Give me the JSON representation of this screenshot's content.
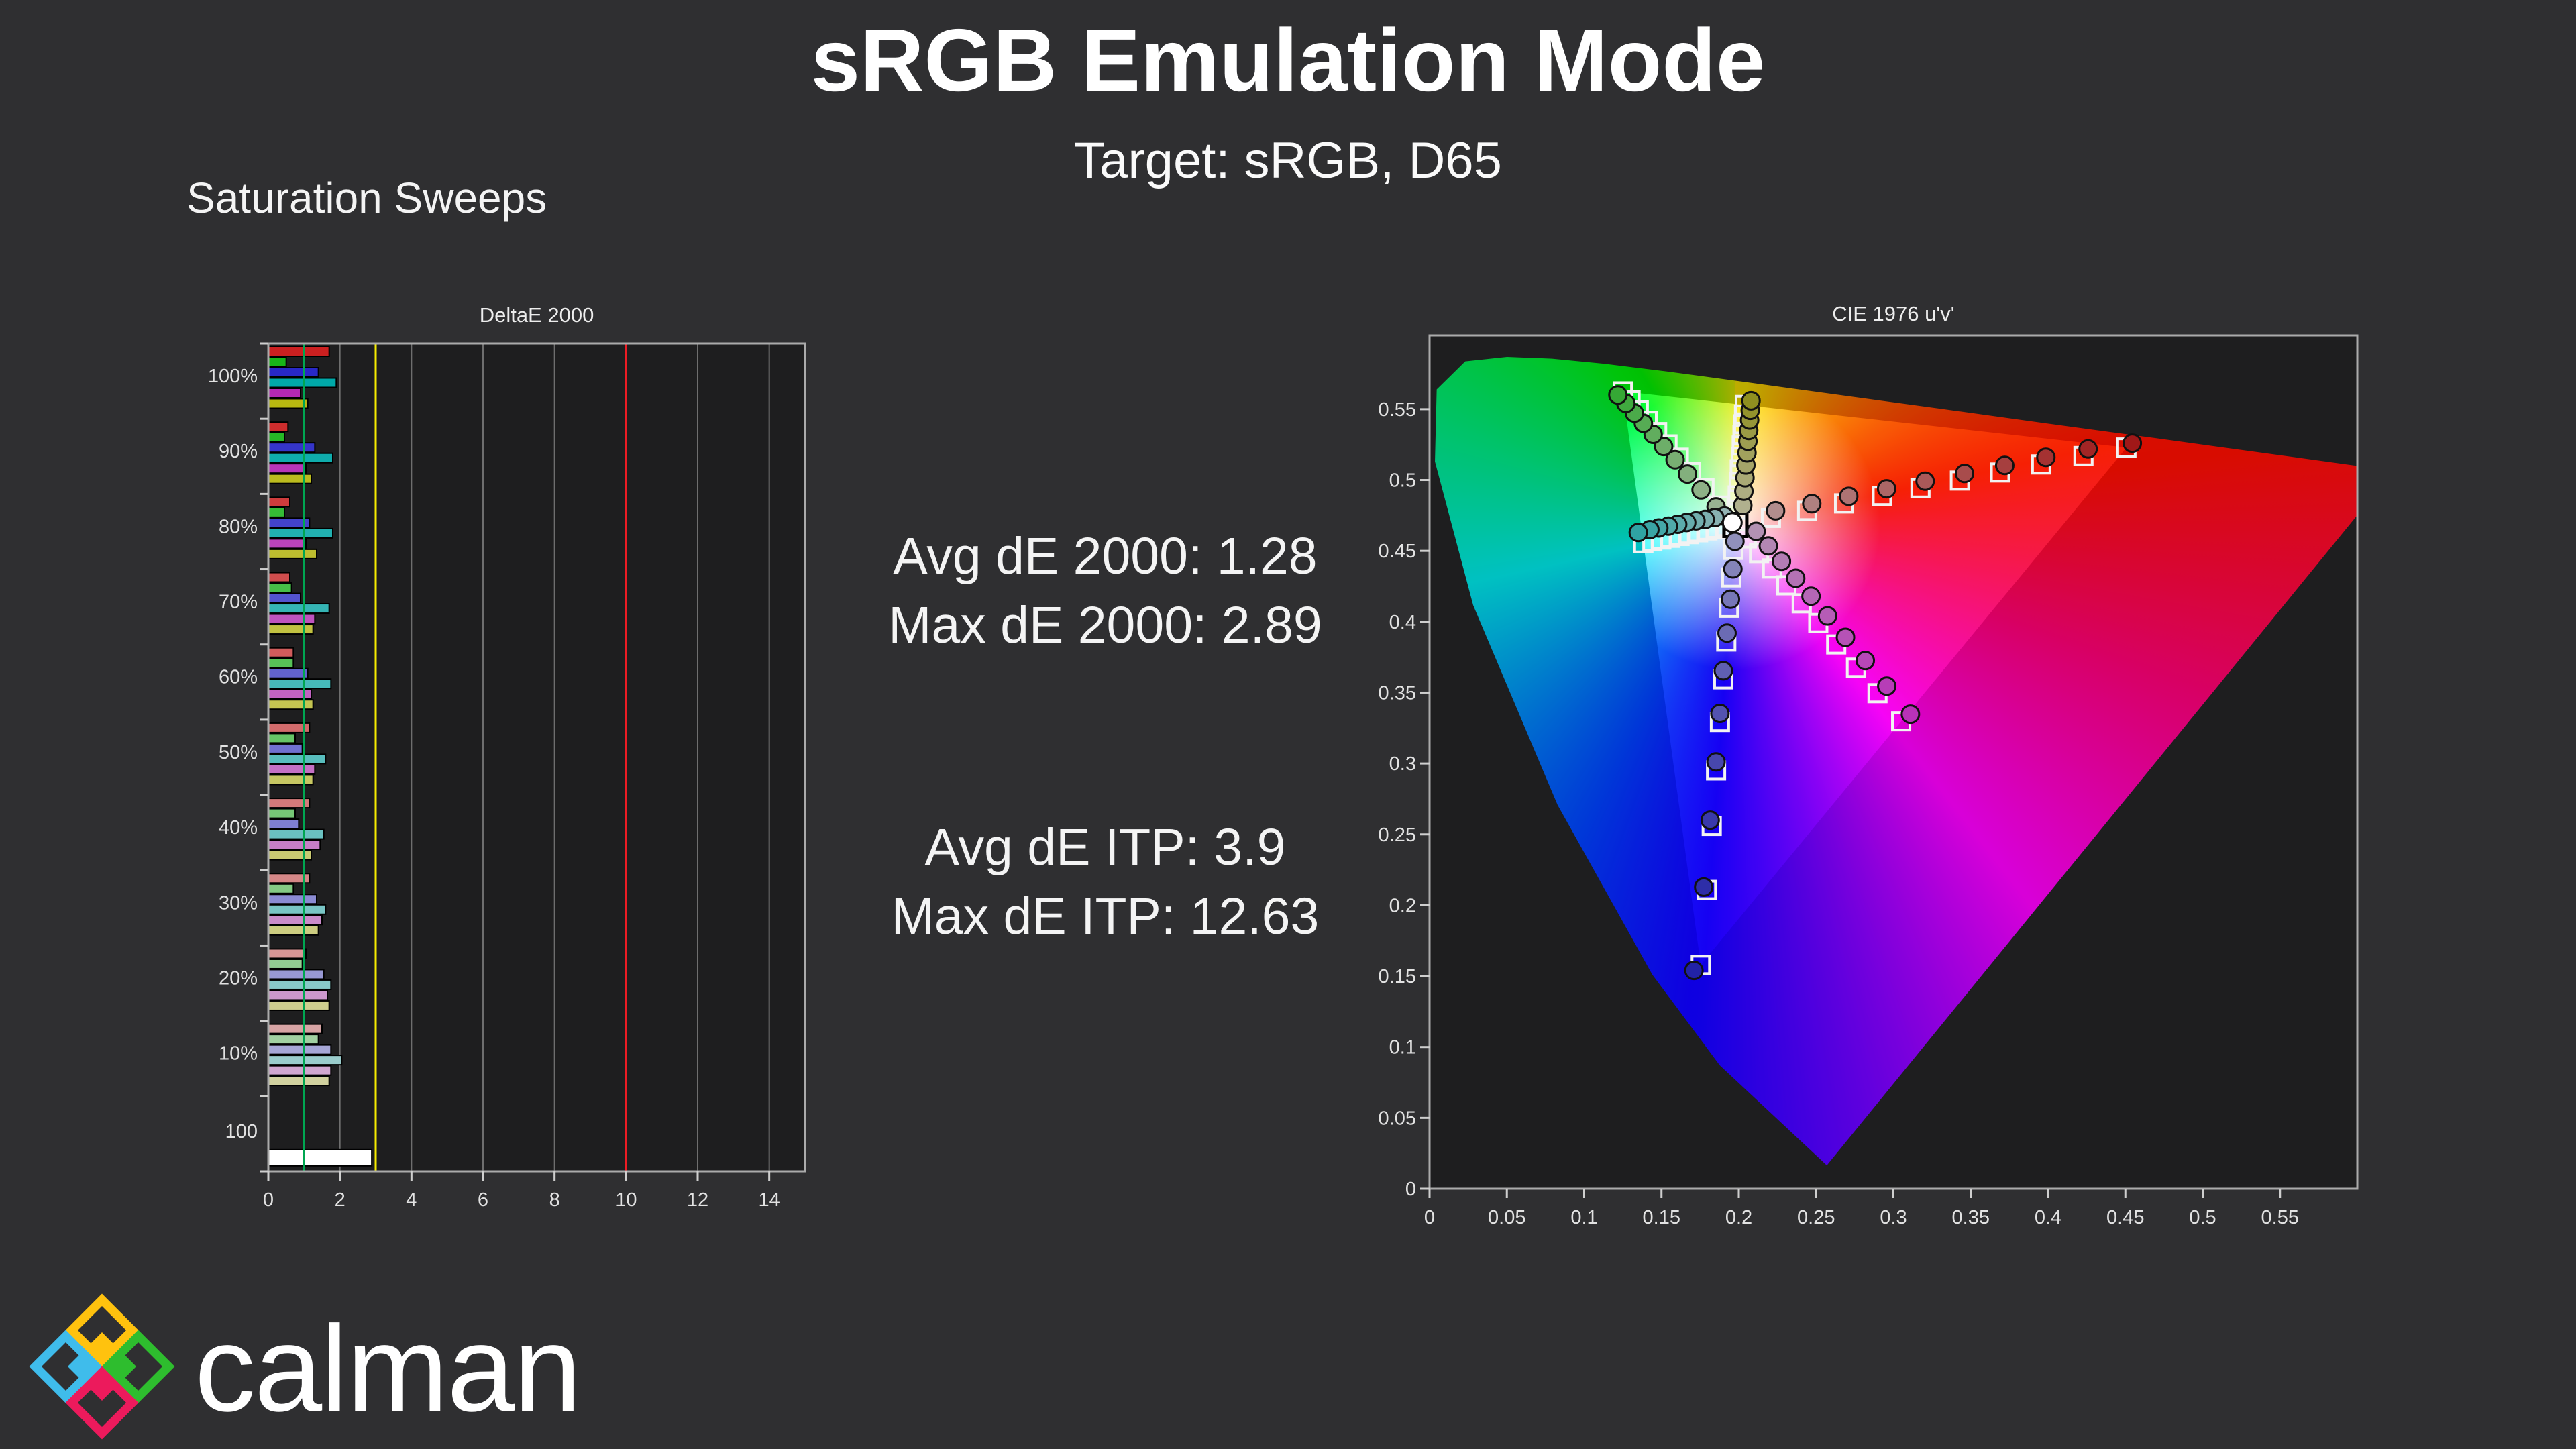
{
  "page": {
    "title": "sRGB Emulation Mode",
    "subtitle": "Target: sRGB, D65",
    "section_label": "Saturation Sweeps",
    "background": "#2F2F31",
    "text_color": "#F2F2F2"
  },
  "metrics": {
    "lines_de2000": [
      "Avg dE 2000: 1.28",
      "Max dE 2000: 2.89"
    ],
    "lines_deitp": [
      "Avg dE ITP: 3.9",
      "Max dE ITP: 12.63"
    ]
  },
  "logo": {
    "text": "calman",
    "diamond_colors": {
      "top": "#FFC20E",
      "left": "#3FBCEB",
      "right": "#2EBD2E",
      "bottom": "#EC1A5C"
    },
    "text_color": "#FFFFFF"
  },
  "chart_data": [
    {
      "type": "bar",
      "title": "DeltaE 2000",
      "orientation": "horizontal",
      "xlim": [
        0,
        15
      ],
      "x_ticks": [
        0,
        2,
        4,
        6,
        8,
        10,
        12,
        14
      ],
      "grid_on": true,
      "reference_lines": [
        {
          "value": 1,
          "color": "#00A651",
          "meaning": "target"
        },
        {
          "value": 3,
          "color": "#F7EC00",
          "meaning": "caution"
        },
        {
          "value": 10,
          "color": "#ED1C24",
          "meaning": "fail"
        }
      ],
      "series_labels": [
        "red",
        "green",
        "blue",
        "cyan",
        "magenta",
        "yellow"
      ],
      "series_hues": [
        "#CC2020",
        "#18B418",
        "#2828C8",
        "#00A8A8",
        "#B428B4",
        "#B8B810"
      ],
      "blend_base": "#DCDCDC",
      "groups": [
        {
          "label": "100%",
          "blend": 1.0,
          "values": [
            1.7,
            0.5,
            1.4,
            1.9,
            0.9,
            1.1
          ]
        },
        {
          "label": "90%",
          "blend": 0.93,
          "values": [
            0.55,
            0.45,
            1.3,
            1.8,
            1.05,
            1.2
          ]
        },
        {
          "label": "80%",
          "blend": 0.85,
          "values": [
            0.6,
            0.45,
            1.15,
            1.8,
            1.05,
            1.35
          ]
        },
        {
          "label": "70%",
          "blend": 0.76,
          "values": [
            0.6,
            0.65,
            0.9,
            1.7,
            1.3,
            1.25
          ]
        },
        {
          "label": "60%",
          "blend": 0.68,
          "values": [
            0.7,
            0.7,
            1.1,
            1.75,
            1.2,
            1.25
          ]
        },
        {
          "label": "50%",
          "blend": 0.6,
          "values": [
            1.15,
            0.75,
            0.95,
            1.6,
            1.3,
            1.25
          ]
        },
        {
          "label": "40%",
          "blend": 0.52,
          "values": [
            1.15,
            0.75,
            0.85,
            1.55,
            1.45,
            1.2
          ]
        },
        {
          "label": "30%",
          "blend": 0.45,
          "values": [
            1.15,
            0.7,
            1.35,
            1.6,
            1.5,
            1.4
          ]
        },
        {
          "label": "20%",
          "blend": 0.38,
          "values": [
            1.05,
            0.95,
            1.55,
            1.75,
            1.65,
            1.7
          ]
        },
        {
          "label": "10%",
          "blend": 0.3,
          "values": [
            1.5,
            1.4,
            1.75,
            2.05,
            1.75,
            1.7
          ]
        },
        {
          "label": "100",
          "blend": 0.0,
          "values": [
            2.89
          ],
          "bar_color": "#FFFFFF"
        }
      ]
    },
    {
      "type": "scatter",
      "title": "CIE 1976 u'v'",
      "xlim": [
        0,
        0.6
      ],
      "ylim": [
        0,
        0.602
      ],
      "x_ticks": [
        "0",
        "0.05",
        "0.1",
        "0.15",
        "0.2",
        "0.25",
        "0.3",
        "0.35",
        "0.4",
        "0.45",
        "0.5",
        "0.55"
      ],
      "y_ticks": [
        "0",
        "0.05",
        "0.1",
        "0.15",
        "0.2",
        "0.25",
        "0.3",
        "0.35",
        "0.4",
        "0.45",
        "0.5",
        "0.55"
      ],
      "white_point": {
        "target": [
          0.1978,
          0.4683
        ],
        "measured": [
          0.1958,
          0.47
        ]
      },
      "gamut_triangle": {
        "red": [
          0.4507,
          0.5229
        ],
        "green": [
          0.125,
          0.5625
        ],
        "blue": [
          0.1754,
          0.1579
        ]
      },
      "spectral_locus": [
        [
          0.2569,
          0.0165
        ],
        [
          0.1877,
          0.0871
        ],
        [
          0.1441,
          0.151
        ],
        [
          0.0828,
          0.2708
        ],
        [
          0.0282,
          0.4117
        ],
        [
          0.0035,
          0.5131
        ],
        [
          0.0046,
          0.5639
        ],
        [
          0.0231,
          0.5837
        ],
        [
          0.0501,
          0.5868
        ],
        [
          0.0792,
          0.5856
        ],
        [
          0.1127,
          0.5821
        ],
        [
          0.1531,
          0.5766
        ],
        [
          0.2026,
          0.5694
        ],
        [
          0.2623,
          0.5604
        ],
        [
          0.3316,
          0.5501
        ],
        [
          0.4035,
          0.5393
        ],
        [
          0.4692,
          0.5296
        ],
        [
          0.5203,
          0.5219
        ],
        [
          0.5565,
          0.5165
        ],
        [
          0.6005,
          0.5099
        ],
        [
          0.6234,
          0.5065
        ]
      ],
      "sweeps": [
        {
          "name": "red",
          "marker_color_start": "#B49A9A",
          "marker_color_end": "#A01818",
          "targets": [
            [
              0.2208,
              0.4733
            ],
            [
              0.2442,
              0.4783
            ],
            [
              0.2681,
              0.4835
            ],
            [
              0.2926,
              0.4888
            ],
            [
              0.3175,
              0.4942
            ],
            [
              0.343,
              0.4996
            ],
            [
              0.369,
              0.5053
            ],
            [
              0.3956,
              0.511
            ],
            [
              0.4229,
              0.5169
            ],
            [
              0.4507,
              0.5229
            ]
          ],
          "measured": [
            [
              0.2238,
              0.4783
            ],
            [
              0.2472,
              0.4833
            ],
            [
              0.2711,
              0.4885
            ],
            [
              0.2956,
              0.4938
            ],
            [
              0.3205,
              0.4992
            ],
            [
              0.346,
              0.5046
            ],
            [
              0.372,
              0.5103
            ],
            [
              0.3986,
              0.516
            ],
            [
              0.4259,
              0.5219
            ],
            [
              0.4545,
              0.526
            ]
          ]
        },
        {
          "name": "green",
          "marker_color_start": "#A4B49C",
          "marker_color_end": "#35A835",
          "targets": [
            [
              0.1873,
              0.4819
            ],
            [
              0.1778,
              0.4942
            ],
            [
              0.1691,
              0.5055
            ],
            [
              0.1612,
              0.5157
            ],
            [
              0.1539,
              0.5251
            ],
            [
              0.1472,
              0.5338
            ],
            [
              0.141,
              0.5418
            ],
            [
              0.1353,
              0.5492
            ],
            [
              0.13,
              0.5561
            ],
            [
              0.125,
              0.5625
            ]
          ],
          "measured": [
            [
              0.1853,
              0.481
            ],
            [
              0.1756,
              0.493
            ],
            [
              0.1668,
              0.5042
            ],
            [
              0.1588,
              0.5143
            ],
            [
              0.1514,
              0.5236
            ],
            [
              0.1446,
              0.5322
            ],
            [
              0.1383,
              0.54
            ],
            [
              0.1325,
              0.5472
            ],
            [
              0.127,
              0.554
            ],
            [
              0.1218,
              0.56
            ]
          ]
        },
        {
          "name": "blue",
          "marker_color_start": "#9C9CBE",
          "marker_color_end": "#2222A6",
          "targets": [
            [
              0.1965,
              0.4507
            ],
            [
              0.1952,
              0.4313
            ],
            [
              0.1936,
              0.4099
            ],
            [
              0.1919,
              0.386
            ],
            [
              0.19,
              0.3594
            ],
            [
              0.1878,
              0.3293
            ],
            [
              0.1853,
              0.2951
            ],
            [
              0.1825,
              0.256
            ],
            [
              0.1793,
              0.2108
            ],
            [
              0.1754,
              0.1579
            ]
          ],
          "measured": [
            [
              0.1975,
              0.4567
            ],
            [
              0.1962,
              0.4373
            ],
            [
              0.1946,
              0.4159
            ],
            [
              0.1924,
              0.392
            ],
            [
              0.19,
              0.3654
            ],
            [
              0.1878,
              0.3353
            ],
            [
              0.1853,
              0.3011
            ],
            [
              0.1815,
              0.26
            ],
            [
              0.1773,
              0.2128
            ],
            [
              0.171,
              0.154
            ]
          ]
        },
        {
          "name": "cyan",
          "marker_color_start": "#9EB6B6",
          "marker_color_end": "#2FA3A3",
          "targets": [
            [
              0.1917,
              0.467
            ],
            [
              0.1857,
              0.4657
            ],
            [
              0.1797,
              0.4644
            ],
            [
              0.1737,
              0.4631
            ],
            [
              0.1677,
              0.4618
            ],
            [
              0.1617,
              0.4605
            ],
            [
              0.1558,
              0.4592
            ],
            [
              0.1499,
              0.458
            ],
            [
              0.1441,
              0.4567
            ],
            [
              0.1383,
              0.4554
            ]
          ],
          "measured": [
            [
              0.1907,
              0.4745
            ],
            [
              0.1845,
              0.4735
            ],
            [
              0.1783,
              0.4722
            ],
            [
              0.1723,
              0.4712
            ],
            [
              0.1663,
              0.47
            ],
            [
              0.1605,
              0.4688
            ],
            [
              0.1545,
              0.4675
            ],
            [
              0.1483,
              0.4662
            ],
            [
              0.1425,
              0.465
            ],
            [
              0.135,
              0.463
            ]
          ]
        },
        {
          "name": "magenta",
          "marker_color_start": "#B29CB2",
          "marker_color_end": "#B832B8",
          "targets": [
            [
              0.2052,
              0.4588
            ],
            [
              0.2131,
              0.4485
            ],
            [
              0.2216,
              0.4376
            ],
            [
              0.2308,
              0.4257
            ],
            [
              0.2407,
              0.413
            ],
            [
              0.2514,
              0.3991
            ],
            [
              0.263,
              0.384
            ],
            [
              0.2758,
              0.3676
            ],
            [
              0.2897,
              0.3496
            ],
            [
              0.305,
              0.3298
            ]
          ],
          "measured": [
            [
              0.2112,
              0.4638
            ],
            [
              0.2191,
              0.4535
            ],
            [
              0.2276,
              0.4426
            ],
            [
              0.2368,
              0.4307
            ],
            [
              0.2467,
              0.418
            ],
            [
              0.2574,
              0.4041
            ],
            [
              0.269,
              0.389
            ],
            [
              0.2818,
              0.3726
            ],
            [
              0.2957,
              0.3546
            ],
            [
              0.311,
              0.3348
            ]
          ]
        },
        {
          "name": "yellow",
          "marker_color_start": "#B4B49A",
          "marker_color_end": "#8F8F20",
          "targets": [
            [
              0.1986,
              0.479
            ],
            [
              0.1993,
              0.4891
            ],
            [
              0.2,
              0.4986
            ],
            [
              0.2006,
              0.5076
            ],
            [
              0.2013,
              0.5162
            ],
            [
              0.2019,
              0.5243
            ],
            [
              0.2024,
              0.5319
            ],
            [
              0.203,
              0.5393
            ],
            [
              0.2034,
              0.5462
            ],
            [
              0.2039,
              0.5529
            ]
          ],
          "measured": [
            [
              0.2026,
              0.482
            ],
            [
              0.2033,
              0.4921
            ],
            [
              0.204,
              0.5016
            ],
            [
              0.2046,
              0.5106
            ],
            [
              0.2053,
              0.5192
            ],
            [
              0.2059,
              0.5273
            ],
            [
              0.2064,
              0.5349
            ],
            [
              0.207,
              0.5423
            ],
            [
              0.2074,
              0.5492
            ],
            [
              0.2079,
              0.5559
            ]
          ]
        }
      ]
    }
  ]
}
